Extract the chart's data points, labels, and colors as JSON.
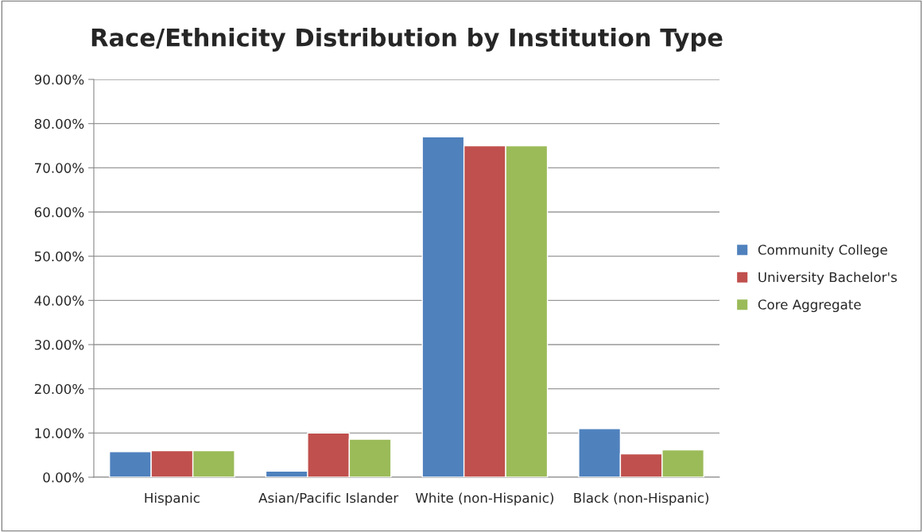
{
  "chart_data": {
    "type": "bar",
    "title": "Race/Ethnicity Distribution by Institution Type",
    "categories": [
      "Hispanic",
      "Asian/Pacific Islander",
      "White (non-Hispanic)",
      "Black (non-Hispanic)"
    ],
    "series": [
      {
        "name": "Community College",
        "color": "#4f81bd",
        "values": [
          5.8,
          1.4,
          77.0,
          11.0
        ]
      },
      {
        "name": "University Bachelor's",
        "color": "#c0504d",
        "values": [
          6.0,
          10.0,
          75.0,
          5.3
        ]
      },
      {
        "name": "Core Aggregate",
        "color": "#9bbb59",
        "values": [
          6.0,
          8.6,
          75.0,
          6.2
        ]
      }
    ],
    "ylim": [
      0,
      90
    ],
    "yticks": [
      {
        "value": 0,
        "label": "0.00%"
      },
      {
        "value": 10,
        "label": "10.00%"
      },
      {
        "value": 20,
        "label": "20.00%"
      },
      {
        "value": 30,
        "label": "30.00%"
      },
      {
        "value": 40,
        "label": "40.00%"
      },
      {
        "value": 50,
        "label": "50.00%"
      },
      {
        "value": 60,
        "label": "60.00%"
      },
      {
        "value": 70,
        "label": "70.00%"
      },
      {
        "value": 80,
        "label": "80.00%"
      },
      {
        "value": 90,
        "label": "90.00%"
      }
    ],
    "grid": "y",
    "legend": "right"
  }
}
